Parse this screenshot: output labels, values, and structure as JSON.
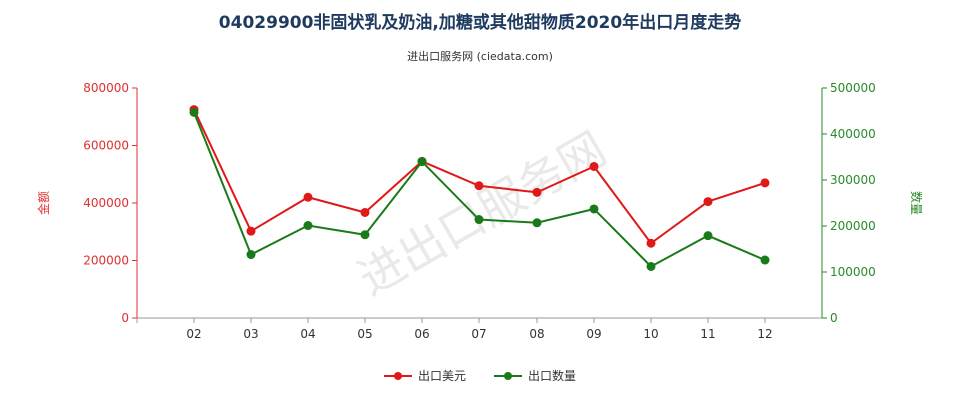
{
  "chart_data": {
    "type": "line",
    "title": "04029900非固状乳及奶油,加糖或其他甜物质2020年出口月度走势",
    "subtitle": "进出口服务网 (ciedata.com)",
    "categories": [
      "02",
      "03",
      "04",
      "05",
      "06",
      "07",
      "08",
      "09",
      "10",
      "11",
      "12"
    ],
    "y_left": {
      "label": "金额",
      "ylim": [
        0,
        800000
      ],
      "ticks": [
        "0",
        "200000",
        "400000",
        "600000",
        "800000"
      ],
      "color": "#e03030"
    },
    "y_right": {
      "label": "数量",
      "ylim": [
        0,
        500000
      ],
      "ticks": [
        "0",
        "100000",
        "200000",
        "300000",
        "400000",
        "500000"
      ],
      "color": "#2a8a2a"
    },
    "series": [
      {
        "name": "出口美元",
        "axis": "left",
        "color": "#e01818",
        "values": [
          725000,
          302000,
          420000,
          367000,
          545000,
          460000,
          437000,
          527000,
          260000,
          405000,
          470000
        ]
      },
      {
        "name": "出口数量",
        "axis": "right",
        "color": "#1a7a1a",
        "values": [
          447000,
          138000,
          201000,
          181000,
          340000,
          214000,
          207000,
          237000,
          112000,
          179000,
          126000
        ]
      }
    ],
    "legend_position": "bottom-center",
    "grid": false,
    "watermark": "进出口服务网"
  }
}
